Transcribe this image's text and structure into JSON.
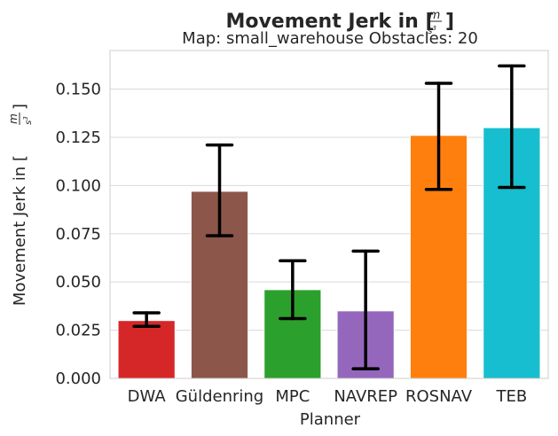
{
  "chart_data": {
    "type": "bar",
    "title_text": "Movement Jerk in [",
    "title_unit_num": "m",
    "title_unit_den": "s",
    "title_unit_exp": "3",
    "title_close": "]",
    "subtitle": "Map: small_warehouse Obstacles: 20",
    "xlabel": "Planner",
    "ylabel_text": "Movement Jerk in [",
    "categories": [
      "DWA",
      "Güldenring",
      "MPC",
      "NAVREP",
      "ROSNAV",
      "TEB"
    ],
    "values": [
      0.03,
      0.097,
      0.046,
      0.035,
      0.126,
      0.13
    ],
    "error_low": [
      0.027,
      0.074,
      0.031,
      0.005,
      0.098,
      0.099
    ],
    "error_high": [
      0.034,
      0.121,
      0.061,
      0.066,
      0.153,
      0.162
    ],
    "colors": [
      "#d62728",
      "#8c564b",
      "#2ca02c",
      "#9467bd",
      "#ff7f0e",
      "#17becf"
    ],
    "ylim": [
      0,
      0.17
    ],
    "yticks": [
      "0.000",
      "0.025",
      "0.050",
      "0.075",
      "0.100",
      "0.125",
      "0.150"
    ],
    "grid": "horizontal"
  }
}
